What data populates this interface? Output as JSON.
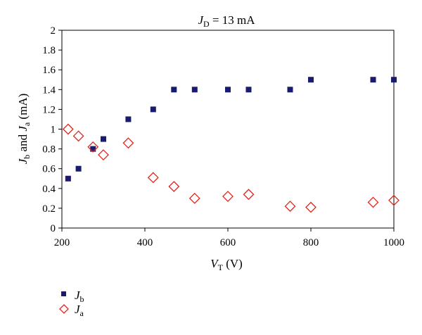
{
  "chart_data": {
    "type": "scatter",
    "title": {
      "var": "J",
      "sub": "D",
      "rest": " = 13 mA"
    },
    "xlabel": {
      "var": "V",
      "sub": "T",
      "rest": " (V)"
    },
    "ylabel": {
      "v1": "J",
      "s1": "b",
      "mid": " and ",
      "v2": "J",
      "s2": "a",
      "rest": " (mA)"
    },
    "xlim": [
      200,
      1000
    ],
    "ylim": [
      0,
      2
    ],
    "xticks": [
      "200",
      "400",
      "600",
      "800",
      "1000"
    ],
    "yticks": [
      "0",
      "0.2",
      "0.4",
      "0.6",
      "0.8",
      "1",
      "1.2",
      "1.4",
      "1.6",
      "1.8",
      "2"
    ],
    "legend_position": "bottom-left",
    "series": [
      {
        "name": "J_b",
        "legend_var": "J",
        "legend_sub": "b",
        "marker": "filled-square",
        "color": "#1a1a6e",
        "x": [
          215,
          240,
          275,
          300,
          360,
          420,
          470,
          520,
          600,
          650,
          750,
          800,
          950,
          1000
        ],
        "y": [
          0.5,
          0.6,
          0.8,
          0.9,
          1.1,
          1.2,
          1.4,
          1.4,
          1.4,
          1.4,
          1.4,
          1.5,
          1.5,
          1.5
        ]
      },
      {
        "name": "J_a",
        "legend_var": "J",
        "legend_sub": "a",
        "marker": "open-diamond",
        "color": "#e0241b",
        "x": [
          215,
          240,
          275,
          300,
          360,
          420,
          470,
          520,
          600,
          650,
          750,
          800,
          950,
          1000
        ],
        "y": [
          1.0,
          0.93,
          0.82,
          0.74,
          0.86,
          0.51,
          0.42,
          0.3,
          0.32,
          0.34,
          0.22,
          0.21,
          0.26,
          0.28
        ]
      }
    ]
  }
}
